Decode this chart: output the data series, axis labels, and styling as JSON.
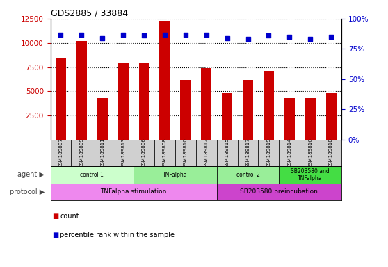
{
  "title": "GDS2885 / 33884",
  "samples": [
    "GSM189807",
    "GSM189809",
    "GSM189811",
    "GSM189813",
    "GSM189806",
    "GSM189808",
    "GSM189810",
    "GSM189812",
    "GSM189815",
    "GSM189817",
    "GSM189819",
    "GSM189814",
    "GSM189816",
    "GSM189818"
  ],
  "counts": [
    8500,
    10200,
    4300,
    7900,
    7900,
    12300,
    6200,
    7400,
    4800,
    6200,
    7100,
    4300,
    4300,
    4800
  ],
  "percentile_ranks": [
    87,
    87,
    84,
    87,
    86,
    87,
    87,
    87,
    84,
    83,
    86,
    85,
    83,
    85
  ],
  "ylim_left": [
    0,
    12500
  ],
  "ylim_right": [
    0,
    100
  ],
  "yticks_left": [
    2500,
    5000,
    7500,
    10000,
    12500
  ],
  "yticks_right": [
    0,
    25,
    50,
    75,
    100
  ],
  "bar_color": "#cc0000",
  "dot_color": "#0000cc",
  "agent_groups": [
    {
      "label": "control 1",
      "start": 0,
      "end": 4,
      "color": "#ccffcc"
    },
    {
      "label": "TNFalpha",
      "start": 4,
      "end": 8,
      "color": "#99ee99"
    },
    {
      "label": "control 2",
      "start": 8,
      "end": 11,
      "color": "#99ee99"
    },
    {
      "label": "SB203580 and\nTNFalpha",
      "start": 11,
      "end": 14,
      "color": "#44dd44"
    }
  ],
  "protocol_groups": [
    {
      "label": "TNFalpha stimulation",
      "start": 0,
      "end": 8,
      "color": "#ee88ee"
    },
    {
      "label": "SB203580 preincubation",
      "start": 8,
      "end": 14,
      "color": "#cc44cc"
    }
  ],
  "bar_width": 0.5,
  "tick_label_color_left": "#cc0000",
  "tick_label_color_right": "#0000cc",
  "sample_bg_color": "#d0d0d0",
  "left_label_color": "#444444"
}
